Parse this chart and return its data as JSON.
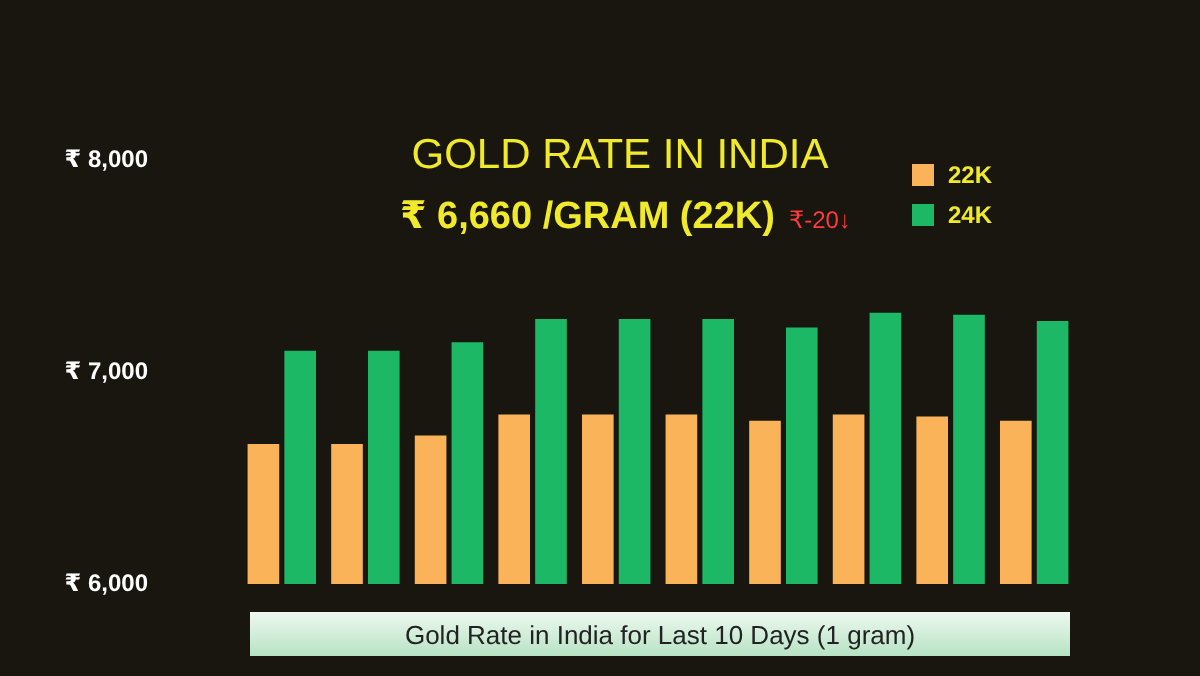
{
  "chart_data": {
    "type": "bar",
    "title": "GOLD RATE IN INDIA",
    "subtitle": "₹ 6,660 /GRAM (22K)",
    "xlabel": "Gold Rate in India for Last 10 Days (1 gram)",
    "annotations": [
      "₹-20↓"
    ],
    "categories": [
      null,
      null,
      null,
      null,
      null,
      null,
      null,
      null,
      null,
      null
    ],
    "series": [
      {
        "name": "22K",
        "color": "#fbb35a",
        "values": [
          6660,
          6660,
          6700,
          6800,
          6800,
          6800,
          6770,
          6800,
          6790,
          6770
        ]
      },
      {
        "name": "24K",
        "color": "#1db866",
        "values": [
          7100,
          7100,
          7140,
          7250,
          7250,
          7250,
          7210,
          7280,
          7270,
          7240
        ]
      }
    ],
    "ylim": [
      6000,
      8000
    ],
    "yticks": [
      {
        "value": 6000,
        "label": "₹ 6,000"
      },
      {
        "value": 7000,
        "label": "₹ 7,000"
      },
      {
        "value": 8000,
        "label": "₹ 8,000"
      }
    ],
    "grid": false,
    "legend": "top right",
    "tick_labels": "y"
  }
}
